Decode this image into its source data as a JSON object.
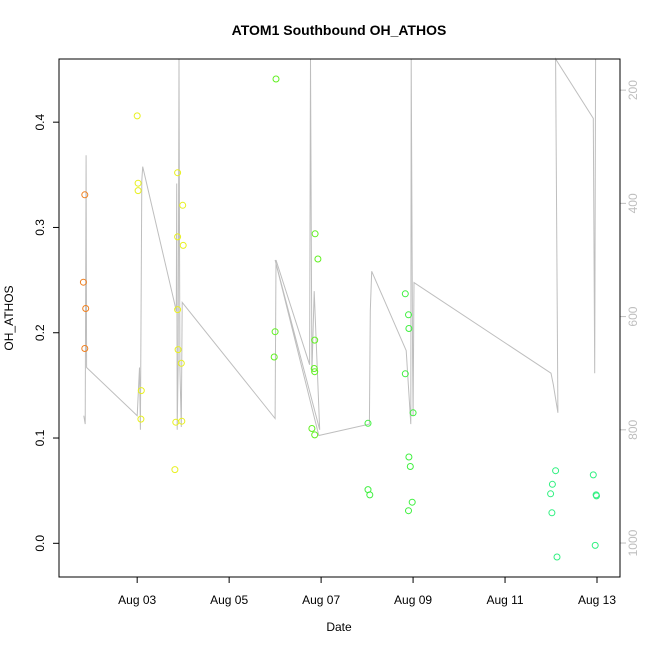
{
  "chart_data": {
    "type": "scatter",
    "title": "ATOM1 Southbound OH_ATHOS",
    "xlabel": "Date",
    "ylabel": "OH_ATHOS",
    "x_range_days": [
      1.3,
      13.5
    ],
    "x_ticks": [
      {
        "day": 3,
        "label": "Aug 03"
      },
      {
        "day": 5,
        "label": "Aug 05"
      },
      {
        "day": 7,
        "label": "Aug 07"
      },
      {
        "day": 9,
        "label": "Aug 09"
      },
      {
        "day": 11,
        "label": "Aug 11"
      },
      {
        "day": 13,
        "label": "Aug 13"
      }
    ],
    "ylim": [
      -0.032,
      0.46
    ],
    "y_ticks": [
      0.0,
      0.1,
      0.2,
      0.3,
      0.4
    ],
    "y_tick_labels": [
      "0.0",
      "0.1",
      "0.2",
      "0.3",
      "0.4"
    ],
    "y2_range": [
      1060,
      145
    ],
    "y2_ticks": [
      200,
      400,
      600,
      800,
      1000
    ],
    "y2_tick_labels": [
      "200",
      "400",
      "600",
      "800",
      "1000"
    ],
    "points": [
      {
        "day": 1.83,
        "y": 0.248,
        "color": "#f08020"
      },
      {
        "day": 1.86,
        "y": 0.331,
        "color": "#f08020"
      },
      {
        "day": 1.88,
        "y": 0.223,
        "color": "#f08020"
      },
      {
        "day": 1.86,
        "y": 0.185,
        "color": "#f08020"
      },
      {
        "day": 3.0,
        "y": 0.406,
        "color": "#e8f020"
      },
      {
        "day": 3.02,
        "y": 0.342,
        "color": "#e8f020"
      },
      {
        "day": 3.02,
        "y": 0.335,
        "color": "#e8f020"
      },
      {
        "day": 3.09,
        "y": 0.145,
        "color": "#e8f020"
      },
      {
        "day": 3.08,
        "y": 0.118,
        "color": "#e8f020"
      },
      {
        "day": 3.82,
        "y": 0.07,
        "color": "#e8f020"
      },
      {
        "day": 3.84,
        "y": 0.115,
        "color": "#e8f020"
      },
      {
        "day": 3.97,
        "y": 0.116,
        "color": "#e8f020"
      },
      {
        "day": 3.88,
        "y": 0.352,
        "color": "#e8f020"
      },
      {
        "day": 3.99,
        "y": 0.321,
        "color": "#e8f020"
      },
      {
        "day": 3.88,
        "y": 0.291,
        "color": "#e8f020"
      },
      {
        "day": 4.0,
        "y": 0.283,
        "color": "#e8f020"
      },
      {
        "day": 3.88,
        "y": 0.222,
        "color": "#e8f020"
      },
      {
        "day": 3.89,
        "y": 0.184,
        "color": "#e8f020"
      },
      {
        "day": 3.96,
        "y": 0.171,
        "color": "#e8f020"
      },
      {
        "day": 6.02,
        "y": 0.441,
        "color": "#60f020"
      },
      {
        "day": 6.0,
        "y": 0.201,
        "color": "#60f020"
      },
      {
        "day": 5.98,
        "y": 0.177,
        "color": "#60f020"
      },
      {
        "day": 6.8,
        "y": 0.109,
        "color": "#60f020"
      },
      {
        "day": 6.86,
        "y": 0.103,
        "color": "#60f020"
      },
      {
        "day": 6.87,
        "y": 0.294,
        "color": "#60f020"
      },
      {
        "day": 6.93,
        "y": 0.27,
        "color": "#60f020"
      },
      {
        "day": 6.86,
        "y": 0.193,
        "color": "#60f020"
      },
      {
        "day": 6.85,
        "y": 0.166,
        "color": "#60f020"
      },
      {
        "day": 6.86,
        "y": 0.163,
        "color": "#60f020"
      },
      {
        "day": 8.02,
        "y": 0.114,
        "color": "#40f040"
      },
      {
        "day": 8.02,
        "y": 0.051,
        "color": "#40f040"
      },
      {
        "day": 8.06,
        "y": 0.046,
        "color": "#40f040"
      },
      {
        "day": 8.83,
        "y": 0.237,
        "color": "#40f040"
      },
      {
        "day": 8.9,
        "y": 0.217,
        "color": "#40f040"
      },
      {
        "day": 8.91,
        "y": 0.204,
        "color": "#40f040"
      },
      {
        "day": 8.83,
        "y": 0.161,
        "color": "#40f040"
      },
      {
        "day": 9.0,
        "y": 0.124,
        "color": "#40f040"
      },
      {
        "day": 8.91,
        "y": 0.082,
        "color": "#40f040"
      },
      {
        "day": 8.94,
        "y": 0.073,
        "color": "#40f040"
      },
      {
        "day": 8.98,
        "y": 0.039,
        "color": "#40f040"
      },
      {
        "day": 8.9,
        "y": 0.031,
        "color": "#40f040"
      },
      {
        "day": 12.1,
        "y": 0.069,
        "color": "#30f080"
      },
      {
        "day": 12.03,
        "y": 0.056,
        "color": "#30f080"
      },
      {
        "day": 11.99,
        "y": 0.047,
        "color": "#30f080"
      },
      {
        "day": 12.02,
        "y": 0.029,
        "color": "#30f080"
      },
      {
        "day": 12.13,
        "y": -0.013,
        "color": "#30f080"
      },
      {
        "day": 12.92,
        "y": 0.065,
        "color": "#30f080"
      },
      {
        "day": 12.98,
        "y": 0.046,
        "color": "#30f080"
      },
      {
        "day": 12.99,
        "y": 0.045,
        "color": "#30f080"
      },
      {
        "day": 12.96,
        "y": -0.002,
        "color": "#30f080"
      }
    ],
    "line_series": {
      "color": "#bebebe",
      "axis": "right",
      "points": [
        [
          1.84,
          775
        ],
        [
          1.87,
          790
        ],
        [
          1.89,
          315
        ],
        [
          1.9,
          690
        ],
        [
          3.0,
          775
        ],
        [
          3.05,
          690
        ],
        [
          3.07,
          800
        ],
        [
          3.1,
          360
        ],
        [
          3.12,
          335
        ],
        [
          3.85,
          590
        ],
        [
          3.86,
          365
        ],
        [
          3.87,
          800
        ],
        [
          3.89,
          690
        ],
        [
          3.91,
          145
        ],
        [
          3.93,
          690
        ],
        [
          3.96,
          795
        ],
        [
          3.98,
          575
        ],
        [
          6.0,
          780
        ],
        [
          6.02,
          500
        ],
        [
          6.75,
          685
        ],
        [
          6.77,
          145
        ],
        [
          6.8,
          700
        ],
        [
          6.85,
          555
        ],
        [
          6.97,
          800
        ],
        [
          6.0,
          500
        ],
        [
          6.95,
          810
        ],
        [
          8.05,
          790
        ],
        [
          8.07,
          590
        ],
        [
          8.1,
          520
        ],
        [
          8.85,
          660
        ],
        [
          8.95,
          790
        ],
        [
          8.96,
          145
        ],
        [
          8.99,
          680
        ],
        [
          9.0,
          775
        ],
        [
          9.02,
          540
        ],
        [
          12.0,
          700
        ],
        [
          12.05,
          720
        ],
        [
          12.15,
          770
        ],
        [
          12.1,
          145
        ],
        [
          12.92,
          250
        ],
        [
          12.95,
          700
        ],
        [
          12.97,
          145
        ]
      ]
    }
  }
}
